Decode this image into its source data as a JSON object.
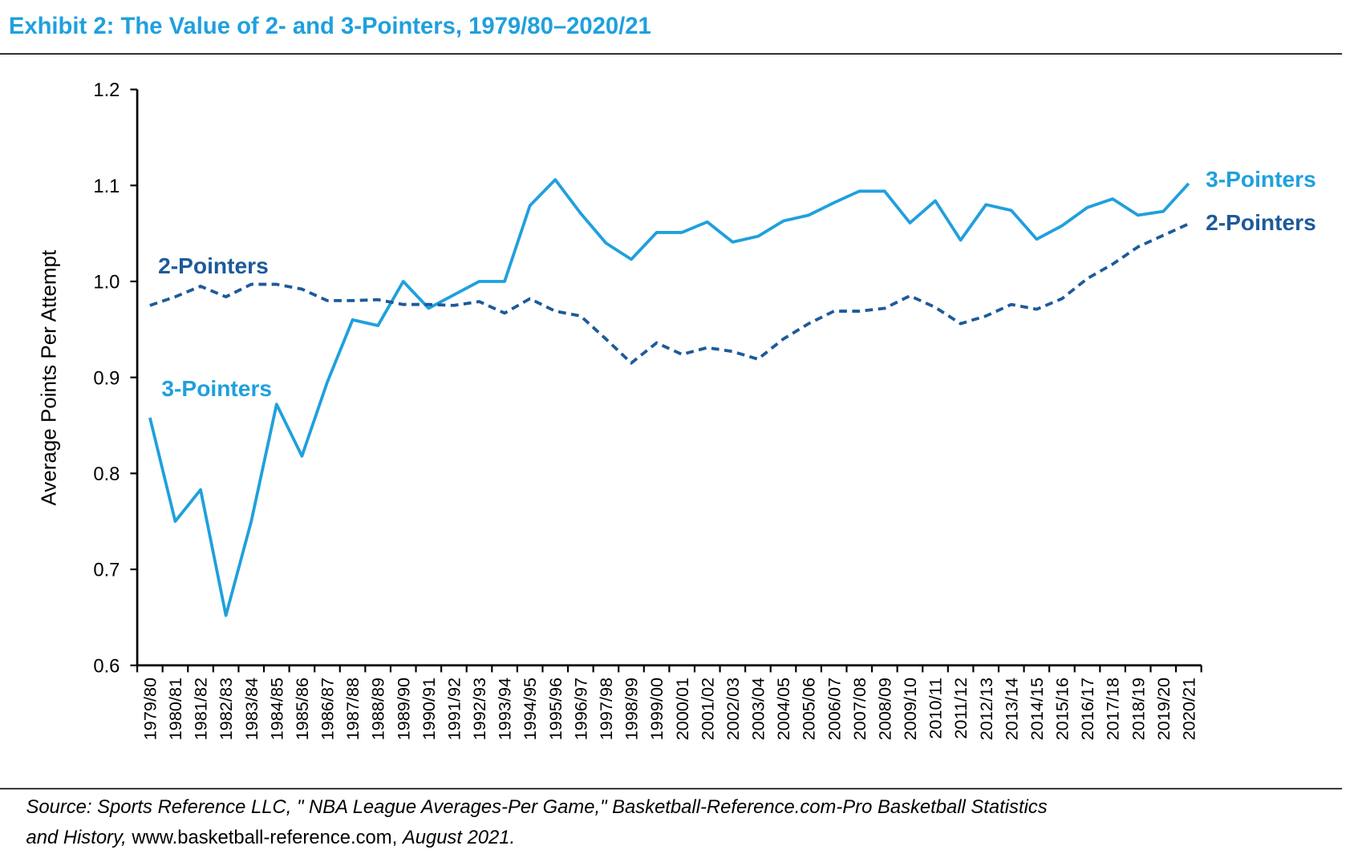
{
  "chart_data": {
    "type": "line",
    "title": "Exhibit 2: The Value of 2- and 3-Pointers, 1979/80–2020/21",
    "y_label": "Average Points Per Attempt",
    "categories": [
      "1979/80",
      "1980/81",
      "1981/82",
      "1982/83",
      "1983/84",
      "1984/85",
      "1985/86",
      "1986/87",
      "1987/88",
      "1988/89",
      "1989/90",
      "1990/91",
      "1991/92",
      "1992/93",
      "1993/94",
      "1994/95",
      "1995/96",
      "1996/97",
      "1997/98",
      "1998/99",
      "1999/00",
      "2000/01",
      "2001/02",
      "2002/03",
      "2003/04",
      "2004/05",
      "2005/06",
      "2006/07",
      "2007/08",
      "2008/09",
      "2009/10",
      "2010/11",
      "2011/12",
      "2012/13",
      "2013/14",
      "2014/15",
      "2015/16",
      "2016/17",
      "2017/18",
      "2018/19",
      "2019/20",
      "2020/21"
    ],
    "series": [
      {
        "name": "3-Pointers",
        "color": "#1fa0dd",
        "dashed": false,
        "values": [
          0.858,
          0.75,
          0.783,
          0.652,
          0.75,
          0.872,
          0.818,
          0.895,
          0.96,
          0.954,
          1.0,
          0.972,
          0.986,
          1.0,
          1.0,
          1.079,
          1.106,
          1.071,
          1.04,
          1.023,
          1.051,
          1.051,
          1.062,
          1.041,
          1.047,
          1.063,
          1.069,
          1.082,
          1.094,
          1.094,
          1.061,
          1.084,
          1.043,
          1.08,
          1.074,
          1.044,
          1.058,
          1.077,
          1.086,
          1.069,
          1.073,
          1.102
        ]
      },
      {
        "name": "2-Pointers",
        "color": "#1d5a9b",
        "dashed": true,
        "values": [
          0.975,
          0.984,
          0.995,
          0.984,
          0.997,
          0.997,
          0.992,
          0.98,
          0.98,
          0.981,
          0.976,
          0.976,
          0.975,
          0.979,
          0.967,
          0.982,
          0.969,
          0.964,
          0.94,
          0.915,
          0.936,
          0.924,
          0.931,
          0.927,
          0.919,
          0.94,
          0.956,
          0.969,
          0.969,
          0.972,
          0.985,
          0.973,
          0.956,
          0.964,
          0.976,
          0.971,
          0.982,
          1.003,
          1.018,
          1.036,
          1.048,
          1.06
        ]
      }
    ],
    "ylim": [
      0.6,
      1.2
    ],
    "yticks": [
      0.6,
      0.7,
      0.8,
      0.9,
      {
        "value": 1,
        "label": "1.0"
      },
      1.1,
      1.2
    ],
    "source": [
      "Source: Sports Reference LLC, \" NBA League Averages-Per Game,\" Basketball-Reference.com-Pro Basketball Statistics",
      "and History,",
      "www.basketball-reference.com,",
      "August 2021."
    ]
  }
}
